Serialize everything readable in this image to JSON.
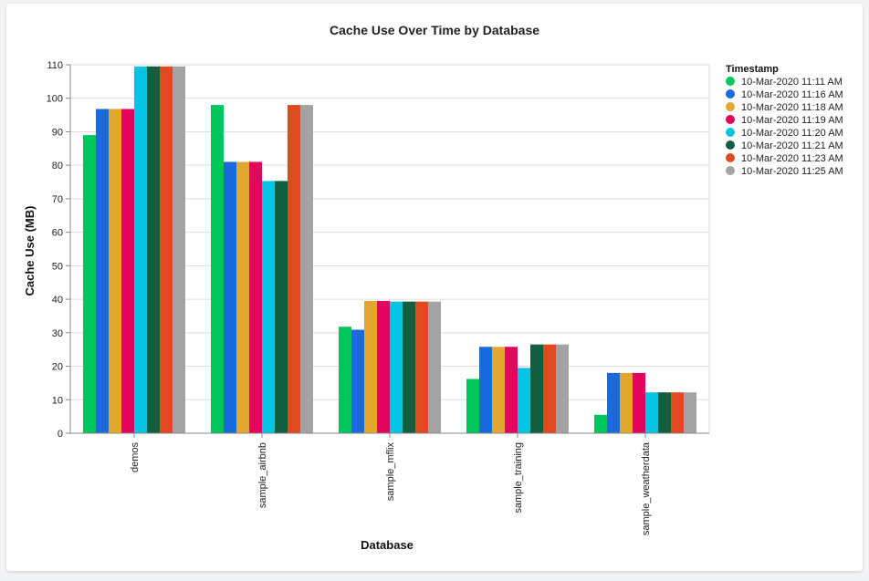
{
  "chart_data": {
    "type": "bar",
    "title": "Cache Use Over Time by Database",
    "xlabel": "Database",
    "ylabel": "Cache Use (MB)",
    "ylim": [
      0,
      110
    ],
    "yticks": [
      0,
      10,
      20,
      30,
      40,
      50,
      60,
      70,
      80,
      90,
      100,
      110
    ],
    "grid": true,
    "legend_title": "Timestamp",
    "legend_position": "right",
    "categories": [
      "demos",
      "sample_airbnb",
      "sample_mflix",
      "sample_training",
      "sample_weatherdata"
    ],
    "series": [
      {
        "name": "10-Mar-2020 11:11 AM",
        "color": "#00c65e",
        "values": [
          89,
          98,
          31.8,
          16.2,
          5.5
        ]
      },
      {
        "name": "10-Mar-2020 11:16 AM",
        "color": "#1a6ade",
        "values": [
          96.8,
          81,
          30.9,
          25.8,
          18
        ]
      },
      {
        "name": "10-Mar-2020 11:18 AM",
        "color": "#e3a632",
        "values": [
          96.8,
          81,
          39.5,
          25.8,
          18
        ]
      },
      {
        "name": "10-Mar-2020 11:19 AM",
        "color": "#e2055e",
        "values": [
          96.8,
          81,
          39.5,
          25.8,
          18
        ]
      },
      {
        "name": "10-Mar-2020 11:20 AM",
        "color": "#07c4e2",
        "values": [
          109.5,
          75.3,
          39.3,
          19.5,
          12.2
        ]
      },
      {
        "name": "10-Mar-2020 11:21 AM",
        "color": "#115e40",
        "values": [
          109.5,
          75.3,
          39.3,
          26.5,
          12.2
        ]
      },
      {
        "name": "10-Mar-2020 11:23 AM",
        "color": "#e04a21",
        "values": [
          109.5,
          98,
          39.3,
          26.5,
          12.2
        ]
      },
      {
        "name": "10-Mar-2020 11:25 AM",
        "color": "#a3a3a3",
        "values": [
          109.5,
          98,
          39.3,
          26.5,
          12.2
        ]
      }
    ]
  }
}
